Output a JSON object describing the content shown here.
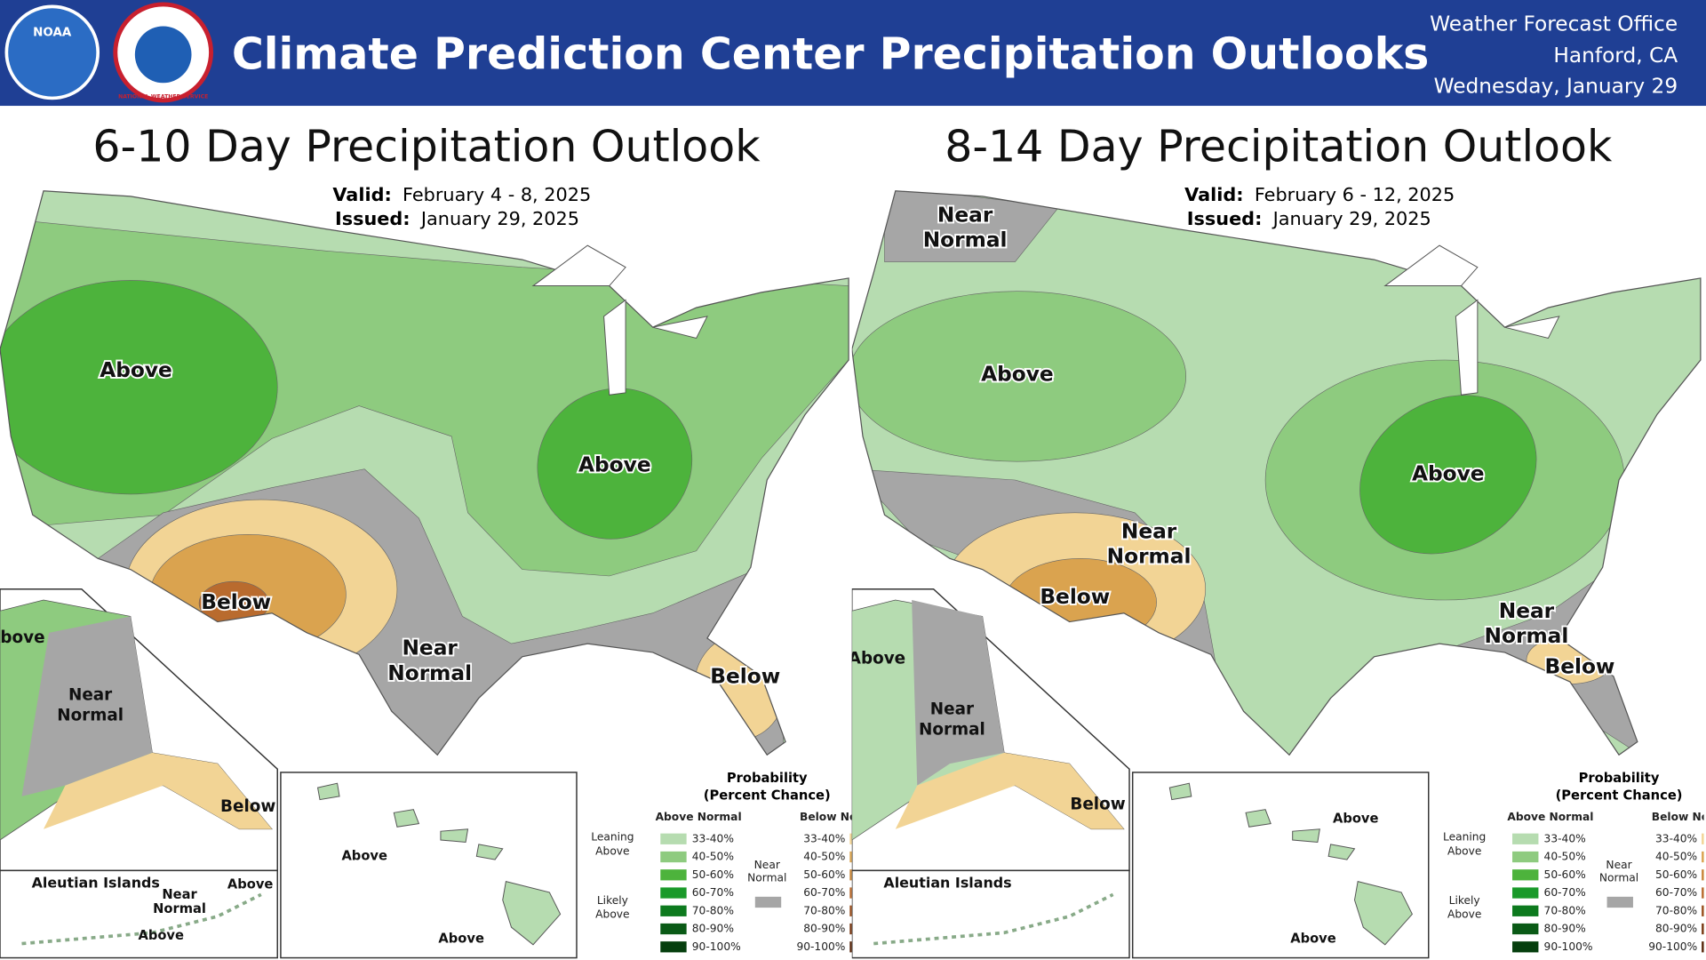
{
  "header": {
    "title": "Climate Prediction Center Precipitation Outlooks",
    "office": [
      "Weather Forecast Office",
      "Hanford, CA",
      "Wednesday, January 29"
    ],
    "logos": [
      "NOAA",
      "NATIONAL WEATHER SERVICE"
    ]
  },
  "maps": [
    {
      "title": "6-10 Day Precipitation Outlook",
      "valid_label": "Valid:",
      "valid": "February 4 - 8, 2025",
      "issued_label": "Issued:",
      "issued": "January 29, 2025",
      "regions": [
        "Above",
        "Above",
        "Below",
        "Near Normal",
        "Below"
      ],
      "alaska": [
        "Above",
        "Near Normal",
        "Below"
      ],
      "aleutian": [
        "Aleutian Islands",
        "Near Normal",
        "Above",
        "Above"
      ],
      "hawaii": [
        "Above",
        "Above"
      ]
    },
    {
      "title": "8-14 Day Precipitation Outlook",
      "valid_label": "Valid:",
      "valid": "February 6 - 12, 2025",
      "issued_label": "Issued:",
      "issued": "January 29, 2025",
      "regions": [
        "Near Normal",
        "Above",
        "Near Normal",
        "Below",
        "Above",
        "Near Normal",
        "Below"
      ],
      "alaska": [
        "Above",
        "Near Normal",
        "Below"
      ],
      "aleutian": [
        "Aleutian Islands"
      ],
      "hawaii": [
        "Above",
        "Above"
      ]
    }
  ],
  "legend": {
    "title": [
      "Probability",
      "(Percent Chance)"
    ],
    "above_header": "Above Normal",
    "below_header": "Below Normal",
    "leaning": "Leaning Above",
    "likely": "Likely Above",
    "near": "Near Normal",
    "ranges": [
      "33-40%",
      "40-50%",
      "50-60%",
      "60-70%",
      "70-80%",
      "80-90%",
      "90-100%"
    ]
  }
}
